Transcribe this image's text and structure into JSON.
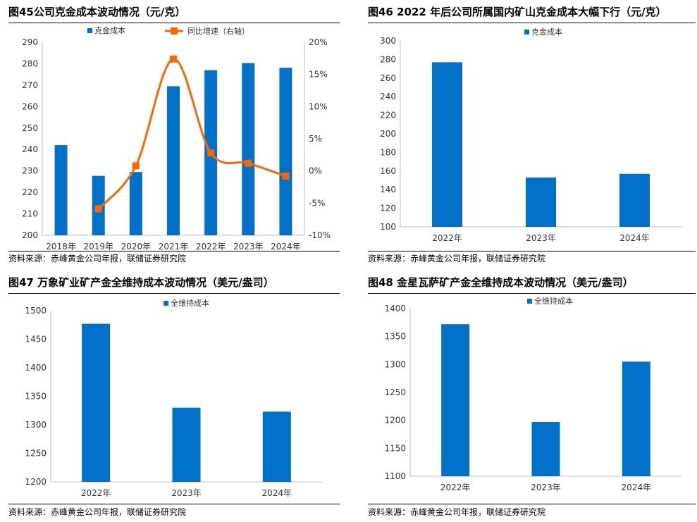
{
  "charts": [
    {
      "title": "图45公司克金成本波动情况（元/克）",
      "source": "资料来源：赤峰黄金公司年报，联储证券研究院",
      "chart_data": {
        "type": "bar",
        "categories": [
          "2018年",
          "2019年",
          "2020年",
          "2021年",
          "2022年",
          "2023年",
          "2024年"
        ],
        "series": [
          {
            "name": "克金成本",
            "type": "bar",
            "axis": "left",
            "values": [
              242,
              227.7,
              229.5,
              269.5,
              277,
              280.3,
              278.1
            ]
          },
          {
            "name": "同比增速（右轴）",
            "type": "line",
            "axis": "right",
            "values": [
              null,
              -5.9,
              0.8,
              17.4,
              2.8,
              1.2,
              -0.8
            ]
          }
        ],
        "yticks": [
          "200",
          "210",
          "220",
          "230",
          "240",
          "250",
          "260",
          "270",
          "280",
          "290"
        ],
        "y2ticks": [
          "-10%",
          "-5%",
          "0%",
          "5%",
          "10%",
          "15%",
          "20%"
        ],
        "ylim": [
          200,
          290
        ],
        "y2lim": [
          -10,
          20
        ],
        "legend": "top",
        "colors": {
          "bar": "#0070C8",
          "line": "#FF6600"
        }
      }
    },
    {
      "title": "图46 2022 年后公司所属国内矿山克金成本大幅下行（元/克）",
      "source": "资料来源：赤峰黄金公司年报，联储证券研究院",
      "chart_data": {
        "type": "bar",
        "categories": [
          "2022年",
          "2023年",
          "2024年"
        ],
        "series": [
          {
            "name": "克金成本",
            "values": [
              277,
              153,
              157
            ]
          }
        ],
        "yticks": [
          "100",
          "120",
          "140",
          "160",
          "180",
          "200",
          "220",
          "240",
          "260",
          "280",
          "300"
        ],
        "ylim": [
          100,
          300
        ],
        "legend": "top",
        "colors": {
          "bar": "#0070C8"
        }
      }
    },
    {
      "title": "图47 万象矿业矿产金全维持成本波动情况（美元/盎司）",
      "source": "资料来源：赤峰黄金公司年报，联储证券研究院",
      "chart_data": {
        "type": "bar",
        "categories": [
          "2022年",
          "2023年",
          "2024年"
        ],
        "series": [
          {
            "name": "全维持成本",
            "values": [
              1477,
              1330,
              1323
            ]
          }
        ],
        "yticks": [
          "1200",
          "1250",
          "1300",
          "1350",
          "1400",
          "1450",
          "1500"
        ],
        "ylim": [
          1200,
          1500
        ],
        "legend": "top",
        "colors": {
          "bar": "#0070C8"
        }
      }
    },
    {
      "title": "图48 金星瓦萨矿产金全维持成本波动情况（美元/盎司）",
      "source": "资料来源：赤峰黄金公司年报，联储证券研究院",
      "chart_data": {
        "type": "bar",
        "categories": [
          "2022年",
          "2023年",
          "2024年"
        ],
        "series": [
          {
            "name": "全维持成本",
            "values": [
              1372,
              1197,
              1305
            ]
          }
        ],
        "yticks": [
          "1100",
          "1150",
          "1200",
          "1250",
          "1300",
          "1350",
          "1400"
        ],
        "ylim": [
          1100,
          1400
        ],
        "legend": "top",
        "colors": {
          "bar": "#0070C8"
        }
      }
    }
  ]
}
